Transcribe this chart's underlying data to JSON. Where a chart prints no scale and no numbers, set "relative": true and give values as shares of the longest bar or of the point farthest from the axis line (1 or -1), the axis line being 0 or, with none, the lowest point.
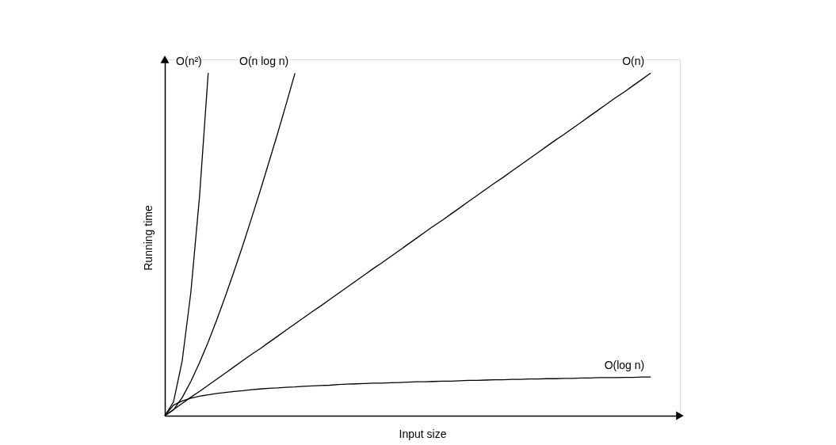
{
  "chart_data": {
    "type": "line",
    "relative": true,
    "xlabel": "Input size",
    "ylabel": "Running time",
    "line_style": "solid",
    "categories": [
      null,
      null,
      null,
      null,
      null,
      null,
      null,
      null,
      null,
      null,
      null,
      null,
      null,
      null,
      null,
      null,
      null,
      null,
      null,
      null,
      null,
      null,
      null,
      null,
      null,
      null,
      null,
      null,
      null,
      null,
      null,
      null,
      null,
      null,
      null,
      null,
      null,
      null,
      null,
      null,
      null,
      null,
      null,
      null,
      null,
      null,
      null,
      null,
      null,
      null,
      null,
      null,
      null,
      null,
      null,
      null,
      null
    ],
    "series": [
      {
        "name": "O(n²)",
        "color": "#000000",
        "values": [
          0,
          0.04,
          0.16,
          0.36,
          0.64,
          1.0,
          null,
          null,
          null,
          null,
          null,
          null,
          null,
          null,
          null,
          null,
          null,
          null,
          null,
          null,
          null,
          null,
          null,
          null,
          null,
          null,
          null,
          null,
          null,
          null,
          null,
          null,
          null,
          null,
          null,
          null,
          null,
          null,
          null,
          null,
          null,
          null,
          null,
          null,
          null,
          null,
          null,
          null,
          null,
          null,
          null,
          null,
          null,
          null,
          null,
          null,
          null
        ]
      },
      {
        "name": "O(n log n)",
        "color": "#000000",
        "values": [
          0,
          0.017,
          0.053,
          0.1,
          0.155,
          0.215,
          0.281,
          0.35,
          0.423,
          0.498,
          0.577,
          0.657,
          0.74,
          0.824,
          0.911,
          1.0,
          null,
          null,
          null,
          null,
          null,
          null,
          null,
          null,
          null,
          null,
          null,
          null,
          null,
          null,
          null,
          null,
          null,
          null,
          null,
          null,
          null,
          null,
          null,
          null,
          null,
          null,
          null,
          null,
          null,
          null,
          null,
          null,
          null,
          null,
          null,
          null,
          null,
          null,
          null,
          null,
          null
        ]
      },
      {
        "name": "O(n)",
        "color": "#000000",
        "values": [
          0,
          0.018,
          0.036,
          0.054,
          0.071,
          0.089,
          0.107,
          0.125,
          0.143,
          0.161,
          0.179,
          0.196,
          0.214,
          0.232,
          0.25,
          0.268,
          0.286,
          0.304,
          0.321,
          0.339,
          0.357,
          0.375,
          0.393,
          0.411,
          0.429,
          0.446,
          0.464,
          0.482,
          0.5,
          0.518,
          0.536,
          0.554,
          0.571,
          0.589,
          0.607,
          0.625,
          0.643,
          0.661,
          0.679,
          0.696,
          0.714,
          0.732,
          0.75,
          0.768,
          0.786,
          0.804,
          0.821,
          0.839,
          0.857,
          0.875,
          0.893,
          0.911,
          0.929,
          0.946,
          0.964,
          0.982,
          1.0
        ]
      },
      {
        "name": "O(log n)",
        "color": "#000000",
        "values": [
          0,
          0.031,
          0.043,
          0.051,
          0.057,
          0.061,
          0.065,
          0.068,
          0.071,
          0.073,
          0.076,
          0.078,
          0.08,
          0.081,
          0.083,
          0.084,
          0.086,
          0.087,
          0.088,
          0.089,
          0.091,
          0.092,
          0.093,
          0.094,
          0.095,
          0.095,
          0.096,
          0.097,
          0.098,
          0.099,
          0.099,
          0.1,
          0.101,
          0.101,
          0.102,
          0.103,
          0.103,
          0.104,
          0.105,
          0.105,
          0.106,
          0.106,
          0.107,
          0.107,
          0.108,
          0.108,
          0.109,
          0.109,
          0.11,
          0.11,
          0.111,
          0.111,
          0.111,
          0.112,
          0.112,
          0.113,
          0.113
        ]
      }
    ]
  }
}
